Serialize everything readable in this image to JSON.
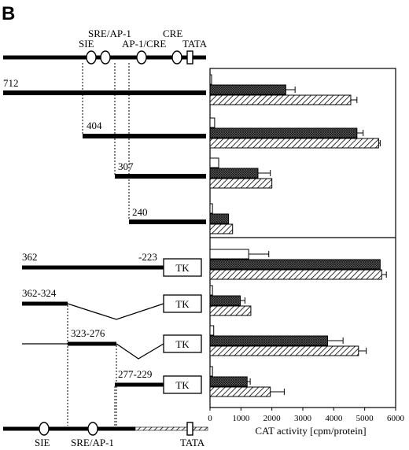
{
  "panel_letter": "B",
  "promoter": {
    "top_elements": [
      "SIE",
      "SRE/AP-1",
      "AP-1/CRE",
      "CRE",
      "TATA"
    ],
    "bottom_elements": [
      "SIE",
      "SRE/AP-1",
      "TATA"
    ]
  },
  "constructs": [
    {
      "label": "712"
    },
    {
      "label": "404"
    },
    {
      "label": "307"
    },
    {
      "label": "240"
    },
    {
      "label": "362",
      "label2": "-223",
      "reporter": "TK"
    },
    {
      "label": "362-324",
      "reporter": "TK"
    },
    {
      "label": "323-276",
      "reporter": "TK"
    },
    {
      "label": "277-229",
      "reporter": "TK"
    }
  ],
  "chart_data": {
    "type": "bar",
    "orientation": "horizontal",
    "xlabel": "CAT activity [cpm/protein]",
    "xlim": [
      0,
      6000
    ],
    "xticks": [
      0,
      1000,
      2000,
      3000,
      4000,
      5000,
      6000
    ],
    "categories": [
      "712",
      "404",
      "307",
      "240",
      "362/-223 TK",
      "362-324 TK",
      "323-276 TK",
      "277-229 TK"
    ],
    "series": [
      {
        "pattern": "open",
        "values": [
          50,
          150,
          280,
          80,
          1250,
          80,
          120,
          80
        ],
        "errors": [
          0,
          0,
          0,
          0,
          650,
          0,
          0,
          0
        ]
      },
      {
        "pattern": "crosshatch",
        "values": [
          2450,
          4750,
          1550,
          600,
          5500,
          980,
          3800,
          1200
        ],
        "errors": [
          300,
          200,
          400,
          0,
          0,
          150,
          500,
          100
        ]
      },
      {
        "pattern": "diagonal",
        "values": [
          4550,
          5450,
          2000,
          730,
          5550,
          1320,
          4800,
          1950
        ],
        "errors": [
          200,
          50,
          0,
          0,
          150,
          0,
          250,
          450
        ]
      }
    ],
    "colors": {
      "open": "#ffffff",
      "crosshatch": "#4a4a4a",
      "diagonal": "#ffffff",
      "stroke": "#000000"
    },
    "grid": false,
    "legend": "none"
  }
}
